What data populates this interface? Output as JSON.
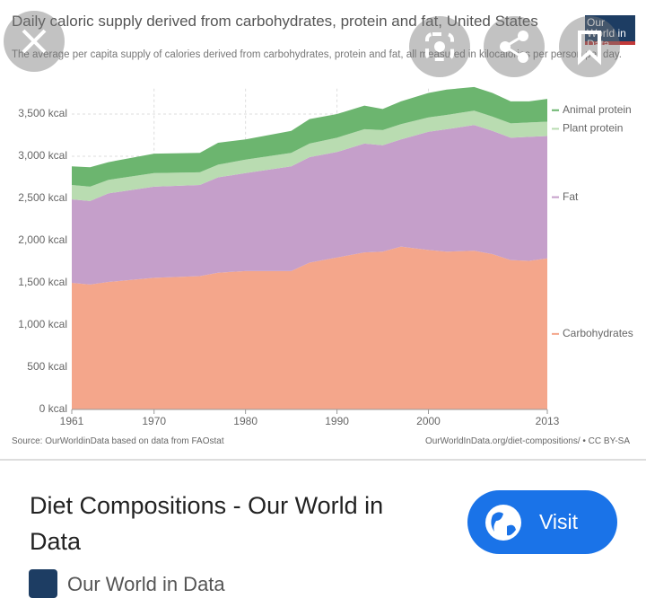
{
  "chart_data": {
    "type": "stacked-area",
    "title": "Daily caloric supply derived from carbohydrates, protein and fat, United States",
    "subtitle": "The average per capita supply of calories derived from carbohydrates, protein and fat, all measured in kilocalories per person per day.",
    "x": [
      1961,
      1963,
      1965,
      1970,
      1975,
      1977,
      1980,
      1985,
      1987,
      1990,
      1993,
      1995,
      1997,
      2000,
      2002,
      2005,
      2007,
      2009,
      2011,
      2013
    ],
    "series": [
      {
        "name": "Carbohydrates",
        "color": "#f4a68b",
        "values": [
          1500,
          1480,
          1510,
          1560,
          1580,
          1620,
          1640,
          1640,
          1740,
          1800,
          1860,
          1870,
          1930,
          1890,
          1870,
          1880,
          1840,
          1770,
          1760,
          1790
        ]
      },
      {
        "name": "Fat",
        "color": "#c59fca",
        "values": [
          990,
          990,
          1050,
          1080,
          1080,
          1130,
          1160,
          1240,
          1250,
          1250,
          1290,
          1260,
          1270,
          1400,
          1450,
          1490,
          1460,
          1450,
          1470,
          1450
        ]
      },
      {
        "name": "Plant protein",
        "color": "#b9dcb1",
        "values": [
          170,
          170,
          160,
          160,
          150,
          150,
          160,
          160,
          160,
          170,
          170,
          180,
          180,
          170,
          170,
          170,
          170,
          170,
          170,
          170
        ]
      },
      {
        "name": "Animal protein",
        "color": "#6cb56f",
        "values": [
          220,
          230,
          210,
          230,
          230,
          260,
          240,
          260,
          290,
          280,
          280,
          250,
          270,
          290,
          300,
          280,
          280,
          260,
          250,
          270
        ]
      }
    ],
    "xlim": [
      1961,
      2013
    ],
    "xticks": [
      1961,
      1970,
      1980,
      1990,
      2000,
      2013
    ],
    "ylim": [
      0,
      3800
    ],
    "yticks": [
      {
        "value": 0,
        "label": "0 kcal"
      },
      {
        "value": 500,
        "label": "500 kcal"
      },
      {
        "value": 1000,
        "label": "1,000 kcal"
      },
      {
        "value": 1500,
        "label": "1,500 kcal"
      },
      {
        "value": 2000,
        "label": "2,000 kcal"
      },
      {
        "value": 2500,
        "label": "2,500 kcal"
      },
      {
        "value": 3000,
        "label": "3,000 kcal"
      },
      {
        "value": 3500,
        "label": "3,500 kcal"
      }
    ],
    "grid": true,
    "source": "Source: OurWorldinData based on data from FAOstat",
    "credit": "OurWorldInData.org/diet-compositions/ • CC BY-SA",
    "logo": "Our World in Data"
  },
  "card": {
    "title": "Diet Compositions - Our World in Data",
    "button": "Visit",
    "site": "Our World in Data"
  }
}
